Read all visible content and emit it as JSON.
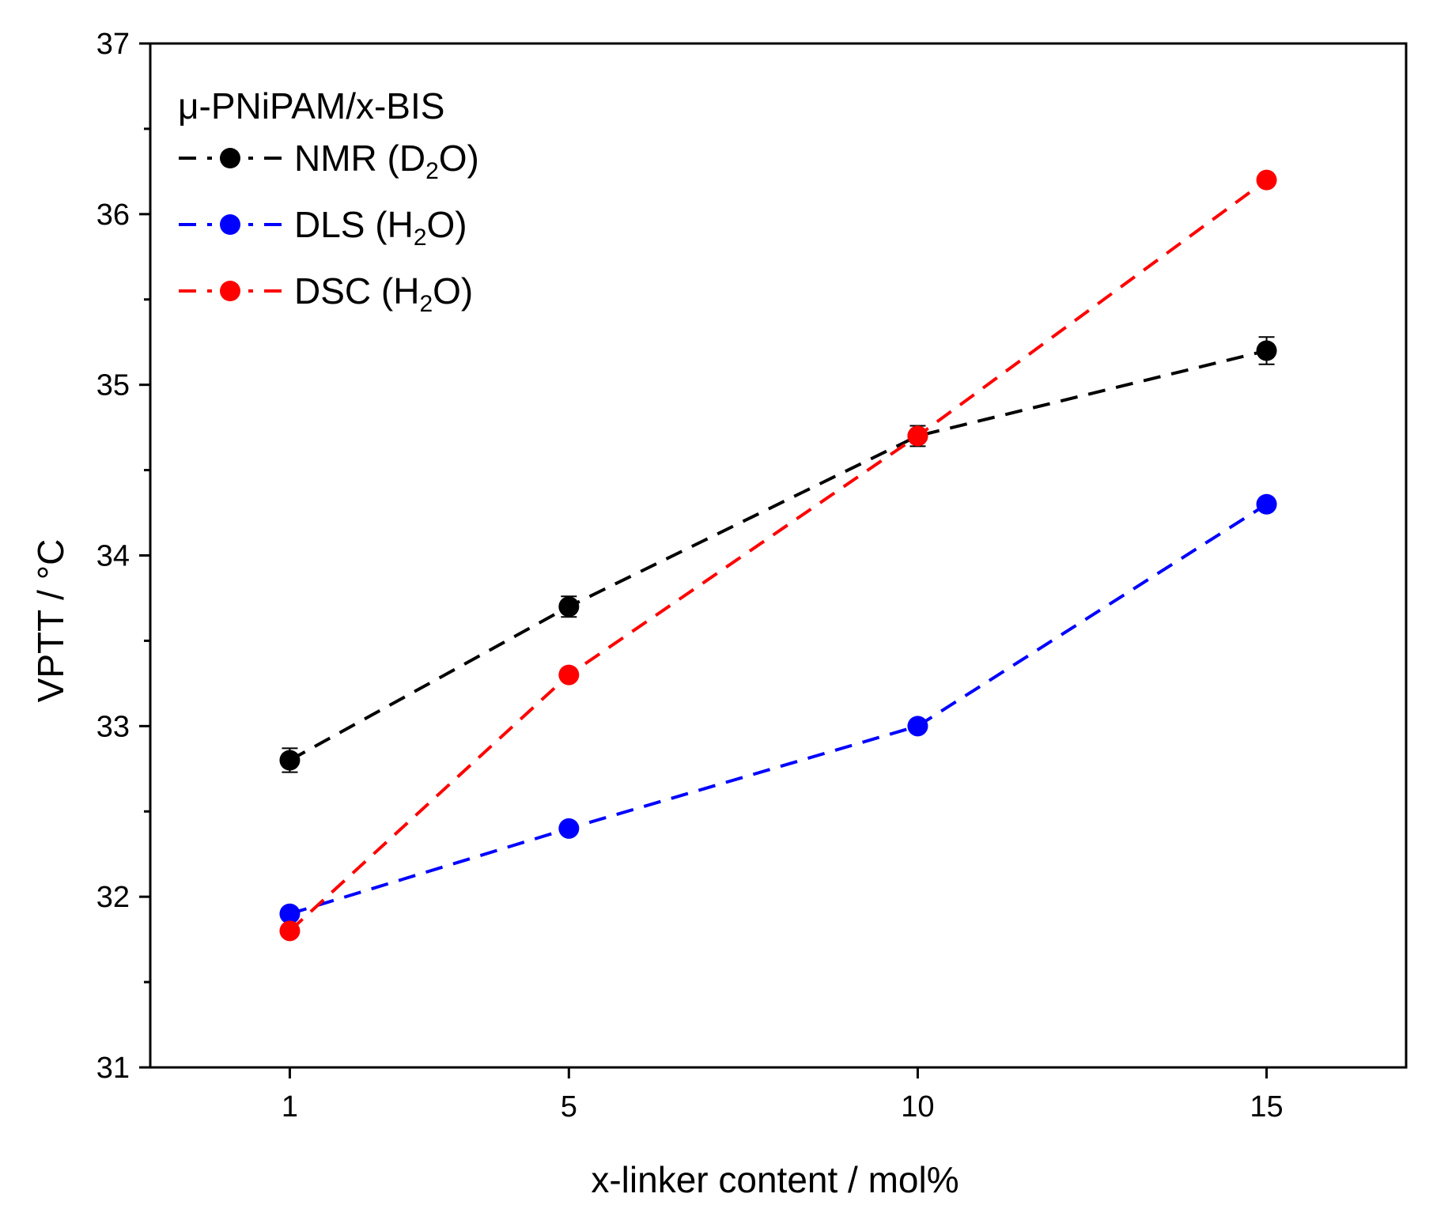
{
  "chart_data": {
    "type": "line",
    "title": "",
    "xlabel": "x-linker content / mol%",
    "ylabel": "VPTT / °C",
    "xlim": [
      -1,
      17
    ],
    "ylim": [
      31,
      37
    ],
    "x_category_ticks": [
      "1",
      "5",
      "10",
      "15"
    ],
    "y_ticks": [
      "31",
      "32",
      "33",
      "34",
      "35",
      "36",
      "37"
    ],
    "grid": false,
    "legend_position": "top-left",
    "legend_title": "μ-PNiPAM/x-BIS",
    "series": [
      {
        "name": "NMR (D2O)",
        "label_main": "NMR (D",
        "label_sub": "2",
        "label_end": "O)",
        "color": "#000000",
        "x": [
          1,
          5,
          10,
          15
        ],
        "values": [
          32.8,
          33.7,
          34.7,
          35.2
        ],
        "errors": [
          0.07,
          0.06,
          0.06,
          0.08
        ]
      },
      {
        "name": "DLS (H2O)",
        "label_main": "DLS (H",
        "label_sub": "2",
        "label_end": "O)",
        "color": "#0000ff",
        "x": [
          1,
          5,
          10,
          15
        ],
        "values": [
          31.9,
          32.4,
          33.0,
          34.3
        ],
        "errors": [
          0,
          0,
          0,
          0
        ]
      },
      {
        "name": "DSC (H2O)",
        "label_main": "DSC (H",
        "label_sub": "2",
        "label_end": "O)",
        "color": "#ff0000",
        "x": [
          1,
          5,
          10,
          15
        ],
        "values": [
          31.8,
          33.3,
          34.7,
          36.2
        ],
        "errors": [
          0,
          0,
          0,
          0
        ]
      }
    ]
  }
}
